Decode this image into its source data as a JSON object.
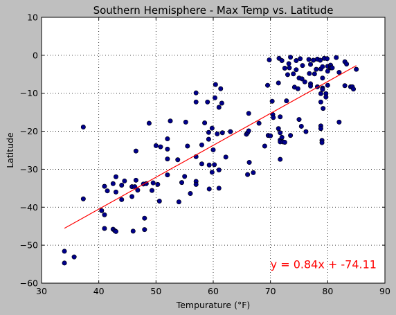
{
  "chart_data": {
    "type": "scatter",
    "title": "Southern Hemisphere - Max Temp vs. Latitude",
    "xlabel": "Tempurature (°F)",
    "ylabel": "Latitude",
    "xlim": [
      30,
      90
    ],
    "ylim": [
      -60,
      10
    ],
    "xticks": [
      30,
      40,
      50,
      60,
      70,
      80,
      90
    ],
    "yticks": [
      -60,
      -50,
      -40,
      -30,
      -20,
      -10,
      0,
      10
    ],
    "grid": true,
    "colors": {
      "points": "#00008b",
      "regression": "#ff0000",
      "annotation": "#ff0000",
      "background": "#ffffff",
      "figure": "#bfbfbf"
    },
    "regression": {
      "slope": 0.84,
      "intercept": -74.11,
      "x_range": [
        34,
        85
      ],
      "label": "y = 0.84x + -74.11",
      "label_anchor": [
        70,
        -55
      ]
    },
    "series": [
      {
        "points": [
          [
            34.0,
            -51.6
          ],
          [
            34.0,
            -54.7
          ],
          [
            35.7,
            -53.1
          ],
          [
            37.3,
            -18.9
          ],
          [
            37.3,
            -37.8
          ],
          [
            40.5,
            -40.9
          ],
          [
            41.0,
            -34.5
          ],
          [
            41.0,
            -42.0
          ],
          [
            41.0,
            -45.6
          ],
          [
            41.5,
            -35.7
          ],
          [
            42.5,
            -33.8
          ],
          [
            42.5,
            -45.8
          ],
          [
            42.8,
            -46.2
          ],
          [
            43.0,
            -32.0
          ],
          [
            43.0,
            -36.0
          ],
          [
            43.0,
            -46.4
          ],
          [
            44.0,
            -34.2
          ],
          [
            44.0,
            -38.0
          ],
          [
            44.5,
            -33.1
          ],
          [
            45.8,
            -34.6
          ],
          [
            45.8,
            -37.2
          ],
          [
            46.0,
            -46.3
          ],
          [
            46.3,
            -34.6
          ],
          [
            46.5,
            -25.2
          ],
          [
            46.5,
            -32.9
          ],
          [
            46.8,
            -35.5
          ],
          [
            47.8,
            -33.9
          ],
          [
            48.0,
            -42.9
          ],
          [
            48.0,
            -45.9
          ],
          [
            48.3,
            -33.8
          ],
          [
            48.8,
            -17.9
          ],
          [
            49.3,
            -35.6
          ],
          [
            49.5,
            -33.6
          ],
          [
            50.0,
            -23.8
          ],
          [
            50.3,
            -34.0
          ],
          [
            50.6,
            -38.4
          ],
          [
            50.8,
            -24.1
          ],
          [
            52.0,
            -24.7
          ],
          [
            52.0,
            -27.3
          ],
          [
            52.0,
            -31.5
          ],
          [
            52.0,
            -22.0
          ],
          [
            52.5,
            -17.3
          ],
          [
            53.8,
            -27.5
          ],
          [
            54.0,
            -38.6
          ],
          [
            54.5,
            -33.5
          ],
          [
            55.0,
            -31.9
          ],
          [
            55.2,
            -17.6
          ],
          [
            55.5,
            -23.9
          ],
          [
            56.0,
            -36.4
          ],
          [
            57.0,
            -9.9
          ],
          [
            57.0,
            -12.3
          ],
          [
            57.0,
            -26.7
          ],
          [
            57.0,
            -33.2
          ],
          [
            57.0,
            -34.0
          ],
          [
            58.0,
            -23.6
          ],
          [
            58.0,
            -28.6
          ],
          [
            58.5,
            -17.8
          ],
          [
            59.0,
            -12.3
          ],
          [
            59.2,
            -20.3
          ],
          [
            59.2,
            -22.1
          ],
          [
            59.3,
            -28.9
          ],
          [
            59.3,
            -35.2
          ],
          [
            59.8,
            -19.2
          ],
          [
            59.8,
            -30.8
          ],
          [
            60.0,
            -24.9
          ],
          [
            60.2,
            -28.8
          ],
          [
            60.3,
            -11.2
          ],
          [
            60.4,
            -7.7
          ],
          [
            60.7,
            -20.7
          ],
          [
            61.0,
            -13.7
          ],
          [
            61.0,
            -30.2
          ],
          [
            61.0,
            -35.0
          ],
          [
            61.3,
            -8.8
          ],
          [
            61.5,
            -12.6
          ],
          [
            61.6,
            -20.4
          ],
          [
            62.2,
            -26.8
          ],
          [
            63.0,
            -20.1
          ],
          [
            65.8,
            -20.8
          ],
          [
            66.0,
            -20.4
          ],
          [
            66.0,
            -31.4
          ],
          [
            66.2,
            -15.3
          ],
          [
            66.2,
            -19.9
          ],
          [
            66.3,
            -28.2
          ],
          [
            67.0,
            -30.9
          ],
          [
            68.0,
            -17.9
          ],
          [
            69.0,
            -23.9
          ],
          [
            69.5,
            -7.9
          ],
          [
            69.6,
            -21.1
          ],
          [
            69.8,
            -1.2
          ],
          [
            70.0,
            -21.2
          ],
          [
            70.3,
            -12.1
          ],
          [
            70.4,
            -15.6
          ],
          [
            70.5,
            -16.4
          ],
          [
            71.4,
            -19.3
          ],
          [
            71.4,
            -7.3
          ],
          [
            71.5,
            -0.8
          ],
          [
            71.7,
            -16.2
          ],
          [
            71.7,
            -20.4
          ],
          [
            71.7,
            -22.3
          ],
          [
            71.7,
            -22.8
          ],
          [
            71.7,
            -27.4
          ],
          [
            72.0,
            -1.4
          ],
          [
            72.0,
            -21.6
          ],
          [
            72.2,
            -22.8
          ],
          [
            72.5,
            -3.4
          ],
          [
            72.5,
            -22.9
          ],
          [
            72.8,
            -12.0
          ],
          [
            73.0,
            -5.1
          ],
          [
            73.2,
            -2.2
          ],
          [
            73.3,
            -3.3
          ],
          [
            73.5,
            -21.1
          ],
          [
            73.5,
            -0.5
          ],
          [
            74.0,
            -4.9
          ],
          [
            74.2,
            -8.4
          ],
          [
            74.5,
            -1.4
          ],
          [
            74.5,
            -3.8
          ],
          [
            74.8,
            -8.8
          ],
          [
            75.0,
            -6.0
          ],
          [
            75.0,
            -16.9
          ],
          [
            75.2,
            -0.9
          ],
          [
            75.4,
            -18.7
          ],
          [
            75.5,
            -6.2
          ],
          [
            75.6,
            -2.7
          ],
          [
            76.0,
            -7.0
          ],
          [
            76.2,
            -20.1
          ],
          [
            76.7,
            -1.1
          ],
          [
            76.8,
            -4.8
          ],
          [
            77.0,
            -2.4
          ],
          [
            77.0,
            -7.5
          ],
          [
            77.0,
            -8.1
          ],
          [
            77.5,
            -1.3
          ],
          [
            77.7,
            -4.9
          ],
          [
            78.0,
            -3.7
          ],
          [
            78.2,
            -1.0
          ],
          [
            78.2,
            -8.3
          ],
          [
            78.7,
            -1.3
          ],
          [
            78.8,
            -3.6
          ],
          [
            78.8,
            -10.1
          ],
          [
            78.8,
            -12.3
          ],
          [
            78.8,
            -18.6
          ],
          [
            78.8,
            -19.3
          ],
          [
            79.0,
            -22.4
          ],
          [
            79.0,
            -23.0
          ],
          [
            79.1,
            -3.0
          ],
          [
            79.1,
            -6.0
          ],
          [
            79.1,
            -8.6
          ],
          [
            79.1,
            -9.0
          ],
          [
            79.2,
            -14.0
          ],
          [
            79.4,
            -0.8
          ],
          [
            79.7,
            -10.1
          ],
          [
            79.7,
            -11.0
          ],
          [
            79.9,
            -0.9
          ],
          [
            80.0,
            -2.9
          ],
          [
            80.0,
            -4.2
          ],
          [
            80.0,
            -7.9
          ],
          [
            80.5,
            -2.6
          ],
          [
            80.5,
            -3.3
          ],
          [
            80.7,
            -3.3
          ],
          [
            80.8,
            -3.3
          ],
          [
            81.5,
            -0.6
          ],
          [
            82.0,
            -4.5
          ],
          [
            82.0,
            -17.6
          ],
          [
            83.0,
            -1.7
          ],
          [
            83.0,
            -8.0
          ],
          [
            83.3,
            -2.3
          ],
          [
            84.0,
            -8.3
          ],
          [
            84.3,
            -8.3
          ],
          [
            84.5,
            -8.9
          ],
          [
            85.0,
            -3.7
          ]
        ]
      }
    ]
  }
}
